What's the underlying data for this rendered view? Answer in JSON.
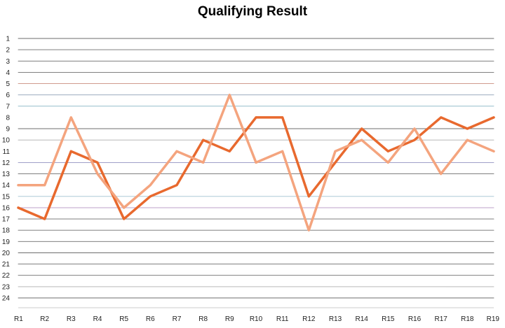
{
  "chart_data": {
    "type": "line",
    "title": "Qualifying Result",
    "xlabel": "",
    "ylabel": "",
    "categories": [
      "R1",
      "R2",
      "R3",
      "R4",
      "R5",
      "R6",
      "R7",
      "R8",
      "R9",
      "R10",
      "R11",
      "R12",
      "R13",
      "R14",
      "R15",
      "R16",
      "R17",
      "R18",
      "R19"
    ],
    "y_ticks": [
      "1",
      "2",
      "3",
      "4",
      "5",
      "6",
      "7",
      "8",
      "9",
      "10",
      "11",
      "12",
      "13",
      "14",
      "15",
      "16",
      "17",
      "18",
      "19",
      "20",
      "21",
      "22",
      "23",
      "24"
    ],
    "ylim": [
      1,
      24
    ],
    "y_inverted": true,
    "grid": false,
    "legend": "none",
    "series": [
      {
        "color": "#E8692E",
        "highlight": true,
        "values": [
          16,
          17,
          11,
          12,
          17,
          15,
          14,
          10,
          11,
          8,
          8,
          15,
          12,
          9,
          11,
          10,
          8,
          9,
          8
        ]
      },
      {
        "color": "#F4A47E",
        "highlight": true,
        "values": [
          14,
          14,
          8,
          13,
          16,
          14,
          11,
          12,
          6,
          12,
          11,
          18,
          11,
          10,
          12,
          9,
          13,
          10,
          11
        ]
      },
      {
        "color": "#555555",
        "values": [
          1,
          1,
          1,
          1,
          1,
          1,
          1,
          1,
          1,
          1,
          1,
          1,
          1,
          1,
          1,
          1,
          1,
          1,
          1
        ]
      },
      {
        "color": "#555555",
        "values": [
          2,
          2,
          2,
          2,
          2,
          2,
          2,
          2,
          2,
          2,
          2,
          2,
          2,
          2,
          2,
          2,
          2,
          2,
          2
        ]
      },
      {
        "color": "#555555",
        "values": [
          3,
          3,
          3,
          3,
          3,
          3,
          3,
          3,
          3,
          3,
          3,
          3,
          3,
          3,
          3,
          3,
          3,
          3,
          3
        ]
      },
      {
        "color": "#555555",
        "values": [
          4,
          4,
          4,
          4,
          4,
          4,
          4,
          4,
          4,
          4,
          4,
          4,
          4,
          4,
          4,
          4,
          4,
          4,
          4
        ]
      },
      {
        "color": "#C98A7A",
        "values": [
          5,
          5,
          5,
          5,
          5,
          5,
          5,
          5,
          5,
          5,
          5,
          5,
          5,
          5,
          5,
          5,
          5,
          5,
          5
        ]
      },
      {
        "color": "#7A8FA8",
        "values": [
          6,
          6,
          6,
          6,
          6,
          6,
          6,
          6,
          6,
          6,
          6,
          6,
          6,
          6,
          6,
          6,
          6,
          6,
          6
        ]
      },
      {
        "color": "#6FA8B8",
        "values": [
          7,
          7,
          7,
          7,
          7,
          7,
          7,
          7,
          7,
          7,
          7,
          7,
          7,
          7,
          7,
          7,
          7,
          7,
          7
        ]
      },
      {
        "color": "#555555",
        "values": [
          9,
          9,
          9,
          9,
          9,
          9,
          9,
          9,
          9,
          9,
          9,
          9,
          9,
          9,
          9,
          9,
          9,
          9,
          9
        ]
      },
      {
        "color": "#A0A0A0",
        "values": [
          10,
          10,
          10,
          10,
          10,
          10,
          10,
          10,
          10,
          10,
          10,
          10,
          10,
          10,
          10,
          10,
          10,
          10,
          10
        ]
      },
      {
        "color": "#7F7FB5",
        "values": [
          12,
          12,
          12,
          12,
          12,
          12,
          12,
          12,
          12,
          12,
          12,
          12,
          12,
          12,
          12,
          12,
          12,
          12,
          12
        ]
      },
      {
        "color": "#555555",
        "values": [
          13,
          13,
          13,
          13,
          13,
          13,
          13,
          13,
          13,
          13,
          13,
          13,
          13,
          13,
          13,
          13,
          13,
          13,
          13
        ]
      },
      {
        "color": "#8FB8C8",
        "values": [
          15,
          15,
          15,
          15,
          15,
          15,
          15,
          15,
          15,
          15,
          15,
          15,
          15,
          15,
          15,
          15,
          15,
          15,
          15
        ]
      },
      {
        "color": "#B08FC0",
        "values": [
          16,
          16,
          16,
          16,
          16,
          16,
          16,
          16,
          16,
          16,
          16,
          16,
          16,
          16,
          16,
          16,
          16,
          16,
          16
        ]
      },
      {
        "color": "#555555",
        "values": [
          17,
          17,
          17,
          17,
          17,
          17,
          17,
          17,
          17,
          17,
          17,
          17,
          17,
          17,
          17,
          17,
          17,
          17,
          17
        ]
      },
      {
        "color": "#555555",
        "values": [
          18,
          18,
          18,
          18,
          18,
          18,
          18,
          18,
          18,
          18,
          18,
          18,
          18,
          18,
          18,
          18,
          18,
          18,
          18
        ]
      },
      {
        "color": "#555555",
        "values": [
          19,
          19,
          19,
          19,
          19,
          19,
          19,
          19,
          19,
          19,
          19,
          19,
          19,
          19,
          19,
          19,
          19,
          19,
          19
        ]
      },
      {
        "color": "#555555",
        "values": [
          20,
          20,
          20,
          20,
          20,
          20,
          20,
          20,
          20,
          20,
          20,
          20,
          20,
          20,
          20,
          20,
          20,
          20,
          20
        ]
      },
      {
        "color": "#555555",
        "values": [
          21,
          21,
          21,
          21,
          21,
          21,
          21,
          21,
          21,
          21,
          21,
          21,
          21,
          21,
          21,
          21,
          21,
          21,
          21
        ]
      },
      {
        "color": "#555555",
        "values": [
          22,
          22,
          22,
          22,
          22,
          22,
          22,
          22,
          22,
          22,
          22,
          22,
          22,
          22,
          22,
          22,
          22,
          22,
          22
        ]
      },
      {
        "color": "#A0A0A0",
        "values": [
          23,
          23,
          23,
          23,
          23,
          23,
          23,
          23,
          23,
          23,
          23,
          23,
          23,
          23,
          23,
          23,
          23,
          23,
          23
        ]
      },
      {
        "color": "#555555",
        "values": [
          24,
          24,
          24,
          24,
          24,
          24,
          24,
          24,
          24,
          24,
          24,
          24,
          24,
          24,
          24,
          24,
          24,
          24,
          24
        ]
      }
    ]
  }
}
